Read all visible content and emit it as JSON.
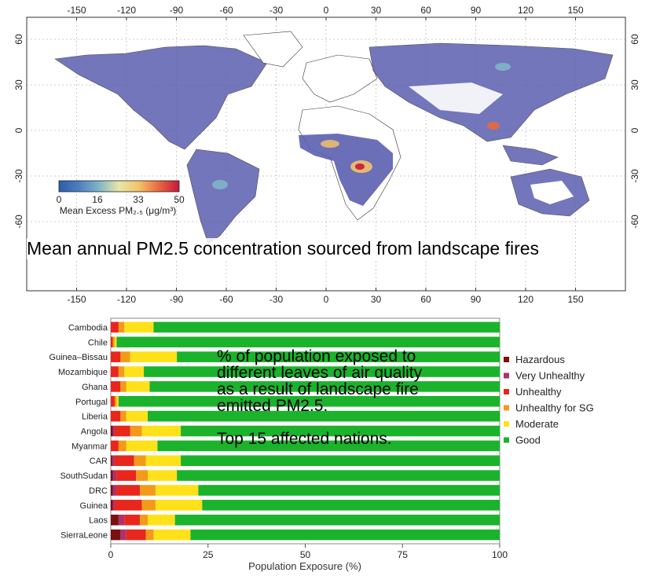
{
  "map": {
    "caption": "Mean annual PM2.5 concentration sourced from landscape fires",
    "lon_ticks": [
      "-150",
      "-120",
      "-90",
      "-60",
      "-30",
      "0",
      "30",
      "60",
      "90",
      "120",
      "150"
    ],
    "lat_ticks": [
      "60",
      "30",
      "0",
      "-30",
      "-60"
    ],
    "colorbar": {
      "ticks": [
        "0",
        "16",
        "33",
        "50"
      ],
      "label": "Mean Excess PM₂.₅ (μg/m³)",
      "colors": [
        "#2b5dab",
        "#4c7fc0",
        "#7fb6c9",
        "#e8e6a6",
        "#f3c26a",
        "#e9673f",
        "#c8163d"
      ]
    },
    "land_color": "#ffffff",
    "fire_color": "#5b5fb0"
  },
  "chart_data": {
    "type": "bar",
    "orientation": "horizontal",
    "stacked": true,
    "xlabel": "Population Exposure (%)",
    "xlim": [
      0,
      100
    ],
    "xticks": [
      "0",
      "25",
      "50",
      "75",
      "100"
    ],
    "legend_position": "right",
    "categories": [
      "Cambodia",
      "Chile",
      "Guinea–Bissau",
      "Mozambique",
      "Ghana",
      "Portugal",
      "Liberia",
      "Angola",
      "Myanmar",
      "CAR",
      "SouthSudan",
      "DRC",
      "Guinea",
      "Laos",
      "SierraLeone"
    ],
    "series": [
      {
        "name": "Hazardous",
        "color": "#7a1010",
        "values": [
          0,
          0,
          0,
          0,
          0,
          0,
          0,
          0.5,
          0,
          0.3,
          0.5,
          0.5,
          0.5,
          2.0,
          2.5
        ]
      },
      {
        "name": "Very Unhealthy",
        "color": "#b0306a",
        "values": [
          0,
          0,
          0,
          0,
          0,
          0,
          0,
          0.5,
          0,
          0.7,
          1.0,
          1.0,
          0.5,
          1.5,
          1.5
        ]
      },
      {
        "name": "Unhealthy",
        "color": "#e8261c",
        "values": [
          2,
          0.5,
          2.5,
          2,
          2.5,
          1,
          2.5,
          4,
          2,
          5,
          5,
          6,
          7,
          4,
          5
        ]
      },
      {
        "name": "Unhealthy for SG",
        "color": "#f39a1a",
        "values": [
          1.5,
          0.5,
          2.5,
          1.5,
          1.5,
          0.5,
          1.5,
          3,
          2,
          3,
          3,
          4,
          3.5,
          2,
          2
        ]
      },
      {
        "name": "Moderate",
        "color": "#ffe11a",
        "values": [
          7.5,
          0.5,
          12,
          5,
          6,
          0.5,
          5.5,
          10,
          8,
          9,
          7.5,
          11,
          12,
          7,
          9.5
        ]
      },
      {
        "name": "Good",
        "color": "#1ab32b",
        "values": [
          89,
          98.5,
          83,
          91.5,
          90,
          98,
          90.5,
          82,
          88,
          82,
          83,
          77.5,
          76.5,
          83.5,
          79.5
        ]
      }
    ]
  },
  "note": {
    "line1": "% of population exposed to",
    "line2": "different leaves of air quality",
    "line3": "as a result of landscape fire",
    "line4": "emitted PM2.5.",
    "line5": "Top 15 affected nations."
  }
}
